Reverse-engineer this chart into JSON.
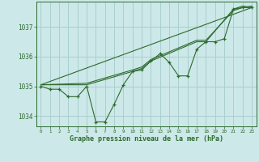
{
  "background_color": "#cce8e8",
  "grid_color": "#aacfcf",
  "line_color": "#2d6a2d",
  "marker_color": "#2d6a2d",
  "xlabel": "Graphe pression niveau de la mer (hPa)",
  "xlim": [
    -0.5,
    23.5
  ],
  "ylim": [
    1033.65,
    1037.85
  ],
  "yticks": [
    1034,
    1035,
    1036,
    1037
  ],
  "xticks": [
    0,
    1,
    2,
    3,
    4,
    5,
    6,
    7,
    8,
    9,
    10,
    11,
    12,
    13,
    14,
    15,
    16,
    17,
    18,
    19,
    20,
    21,
    22,
    23
  ],
  "hours": [
    0,
    1,
    2,
    3,
    4,
    5,
    6,
    7,
    8,
    9,
    10,
    11,
    12,
    13,
    14,
    15,
    16,
    17,
    18,
    19,
    20,
    21,
    22,
    23
  ],
  "line1": [
    1035.0,
    1034.9,
    1034.9,
    1034.65,
    1034.65,
    1035.0,
    1033.8,
    1033.8,
    1034.4,
    1035.05,
    1035.5,
    1035.55,
    1035.85,
    1036.1,
    1035.8,
    1035.35,
    1035.35,
    1036.25,
    1036.5,
    1036.5,
    1036.6,
    1037.6,
    1037.65,
    1037.65
  ],
  "line2_segments": [
    [
      0,
      1035.05
    ],
    [
      5,
      1035.05
    ],
    [
      10,
      1035.5
    ],
    [
      11,
      1035.6
    ],
    [
      12,
      1035.85
    ],
    [
      17,
      1036.5
    ],
    [
      18,
      1036.5
    ],
    [
      21,
      1037.6
    ],
    [
      22,
      1037.7
    ],
    [
      23,
      1037.65
    ]
  ],
  "line3_segments": [
    [
      0,
      1035.05
    ],
    [
      5,
      1035.1
    ],
    [
      10,
      1035.55
    ],
    [
      11,
      1035.65
    ],
    [
      12,
      1035.9
    ],
    [
      17,
      1036.55
    ],
    [
      18,
      1036.55
    ],
    [
      21,
      1037.55
    ],
    [
      22,
      1037.65
    ],
    [
      23,
      1037.7
    ]
  ],
  "trend_x": [
    0,
    23
  ],
  "trend_y": [
    1035.05,
    1037.65
  ]
}
